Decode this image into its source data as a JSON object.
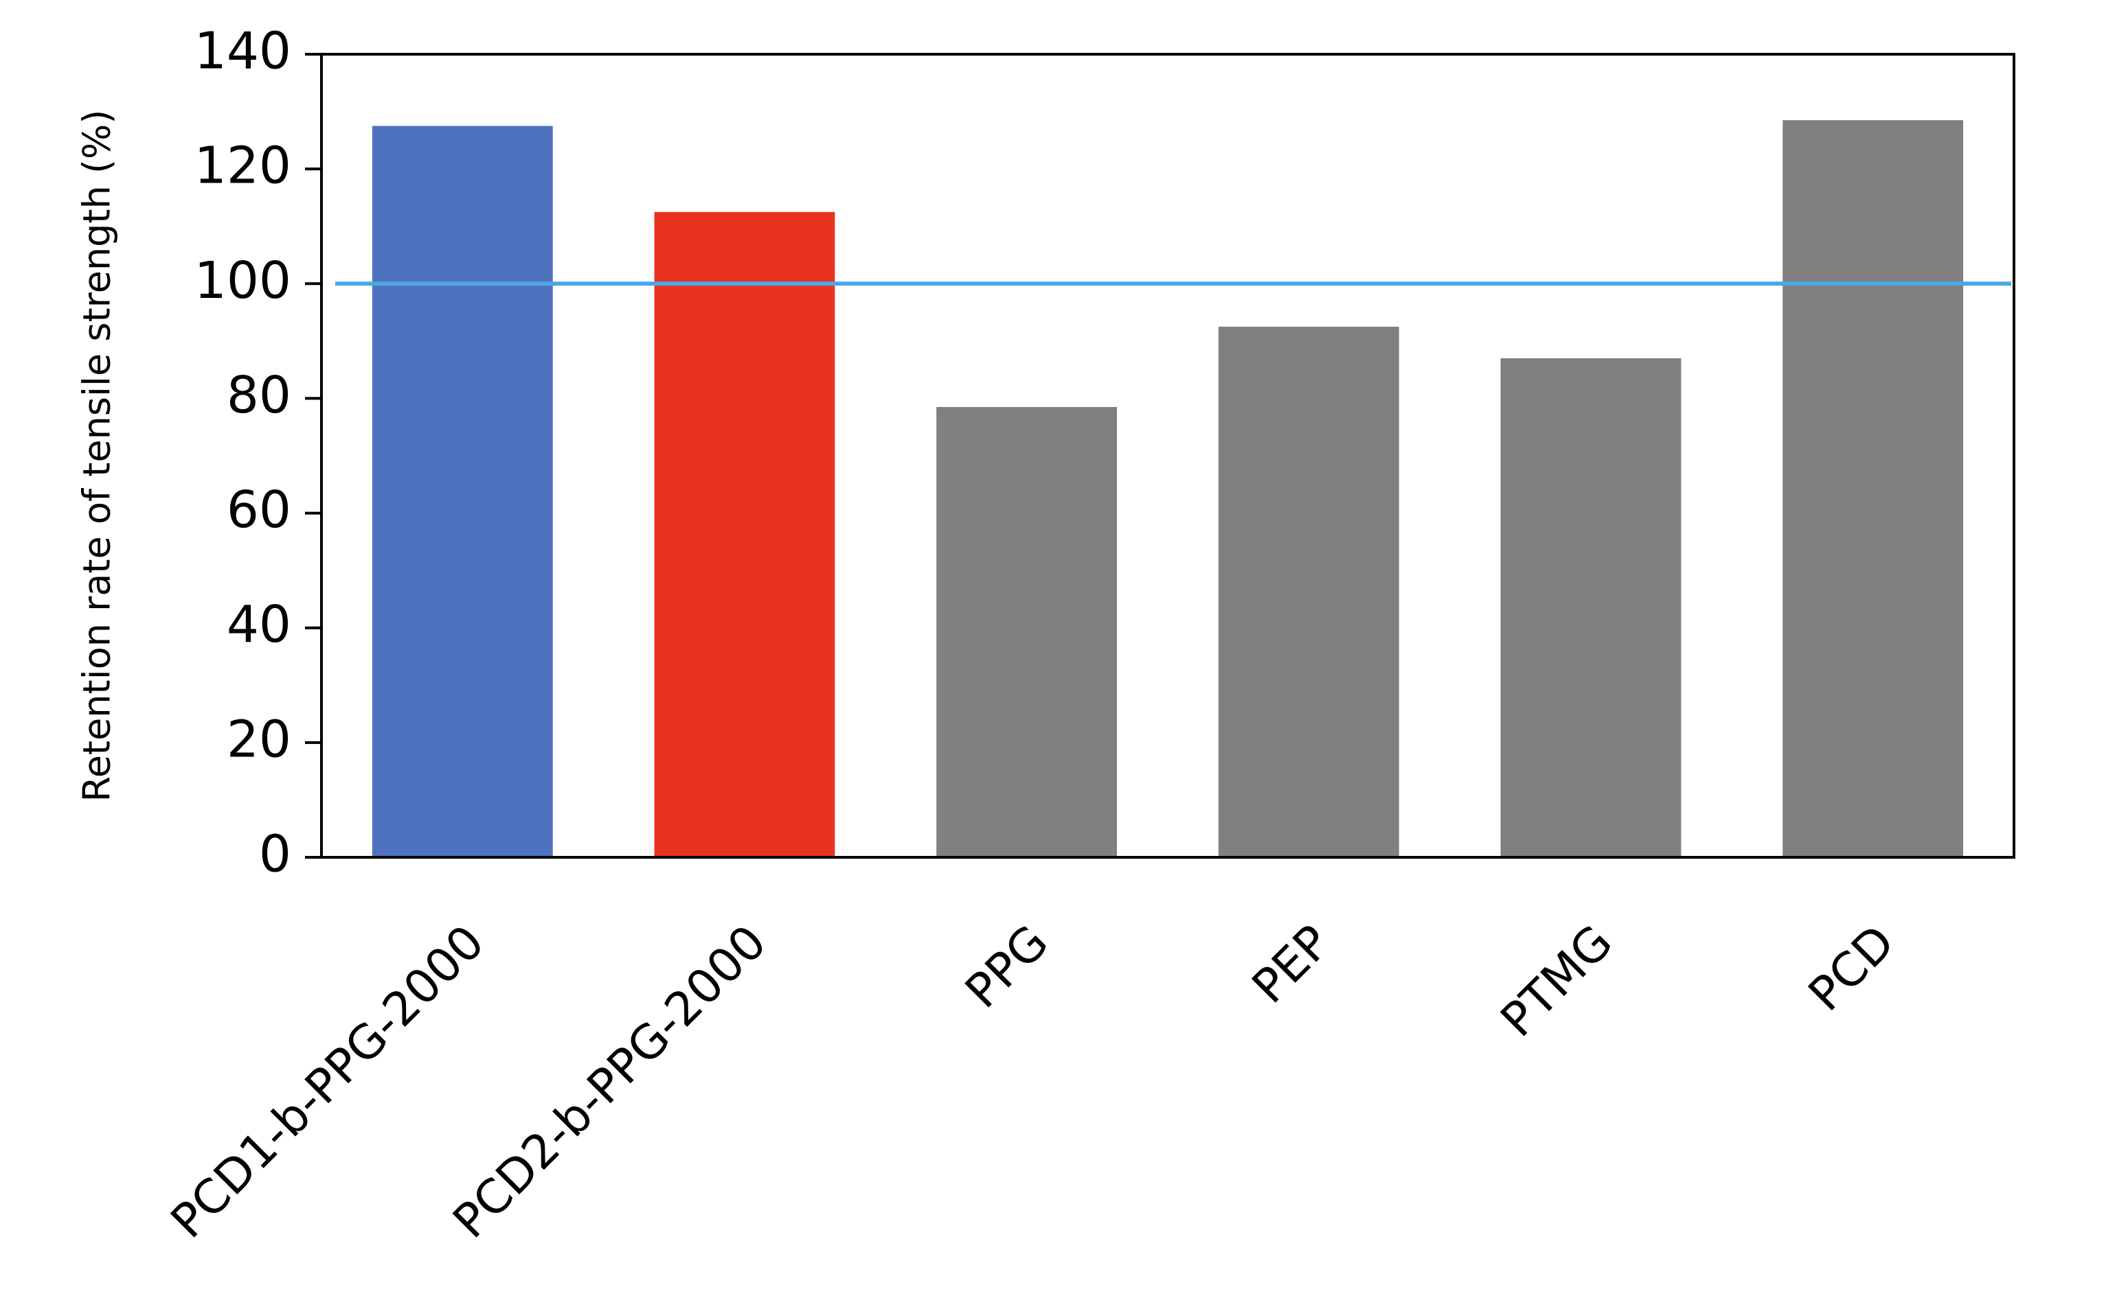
{
  "chart_data": {
    "type": "bar",
    "y_label": "Retention rate of tensile strength (%)",
    "categories": [
      "PCD1-b-PPG-2000",
      "PCD2-b-PPG-2000",
      "PPG",
      "PEP",
      "PTMG",
      "PCD"
    ],
    "values": [
      127.5,
      112.5,
      78.5,
      92.5,
      87,
      128.5
    ],
    "colors": [
      "#4f72be",
      "#e83323",
      "#808080",
      "#808080",
      "#808080",
      "#808080"
    ],
    "reference_line": {
      "value": 100,
      "color": "#4aa7e6"
    },
    "ylim": [
      0,
      140
    ],
    "yticks": [
      0,
      20,
      40,
      60,
      80,
      100,
      120,
      140
    ],
    "grid": false
  }
}
